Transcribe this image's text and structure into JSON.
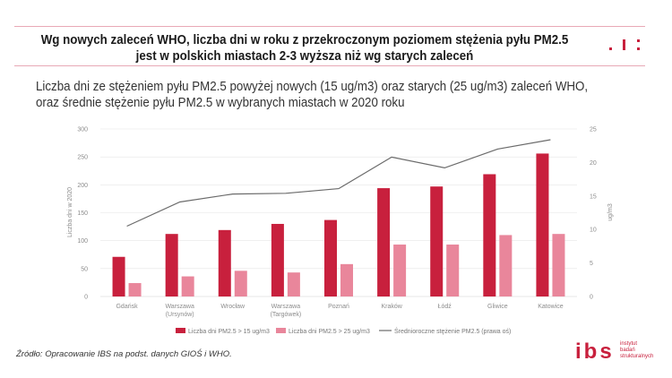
{
  "header": {
    "headline": "Wg nowych zaleceń WHO, liczba dni w roku z przekroczonym poziomem stężenia pyłu PM2.5 jest w polskich miastach 2-3 wyższa niż wg starych zaleceń",
    "subtitle": "Liczba dni ze stężeniem pyłu PM2.5 powyżej nowych (15 ug/m3) oraz starych (25 ug/m3) zaleceń WHO, oraz średnie stężenie pyłu PM2.5 w wybranych miastach w 2020 roku"
  },
  "colors": {
    "series_new": "#c8203d",
    "series_old": "#e9869b",
    "series_line": "#6b6b6b",
    "accent": "#c8203d",
    "rule": "#e8a9b6",
    "grid": "#e6e6e6"
  },
  "chart_data": {
    "type": "bar",
    "categories": [
      [
        "Gdańsk"
      ],
      [
        "Warszawa",
        "(Ursynów)"
      ],
      [
        "Wrocław"
      ],
      [
        "Warszawa",
        "(Targówek)"
      ],
      [
        "Poznań"
      ],
      [
        "Kraków"
      ],
      [
        "Łódź"
      ],
      [
        "Gliwice"
      ],
      [
        "Katowice"
      ]
    ],
    "series": [
      {
        "name": "Liczba dni PM2.5 > 15 ug/m3",
        "kind": "bar",
        "axis": "left",
        "values": [
          71,
          112,
          119,
          130,
          137,
          194,
          197,
          219,
          256
        ]
      },
      {
        "name": "Liczba dni PM2.5 > 25 ug/m3",
        "kind": "bar",
        "axis": "left",
        "values": [
          24,
          36,
          46,
          43,
          58,
          93,
          93,
          110,
          112
        ]
      },
      {
        "name": "Średnioroczne stężenie PM2.5 (prawa oś)",
        "kind": "line",
        "axis": "right",
        "values": [
          10.5,
          14.1,
          15.3,
          15.4,
          16.1,
          20.8,
          19.2,
          22.0,
          23.4
        ]
      }
    ],
    "ylabel": "Liczba dni w 2020",
    "y2label": "ug/m3",
    "ylim": [
      0,
      300
    ],
    "yticks": [
      0,
      50,
      100,
      150,
      200,
      250,
      300
    ],
    "y2lim": [
      0,
      25
    ],
    "y2ticks": [
      0,
      5,
      10,
      15,
      20,
      25
    ],
    "legend_position": "bottom"
  },
  "footer": {
    "source": "Źródło: Opracowanie IBS na podst. danych GIOŚ i WHO.",
    "logo_letters": "ibs",
    "logo_name": [
      "instytut",
      "badań",
      "strukturalnych"
    ]
  }
}
